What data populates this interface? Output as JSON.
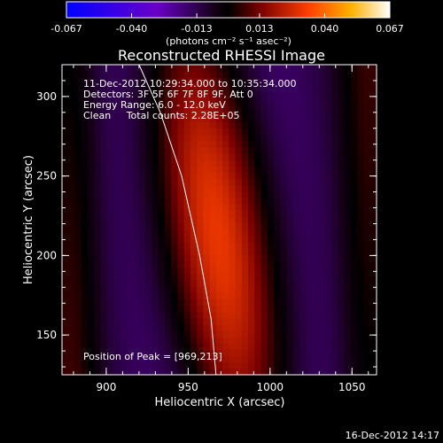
{
  "chart_data": {
    "type": "heatmap",
    "title": "Reconstructed RHESSI Image",
    "xlabel": "Heliocentric X (arcsec)",
    "ylabel": "Heliocentric Y (arcsec)",
    "xlim": [
      873,
      1065
    ],
    "ylim": [
      125,
      320
    ],
    "xticks": [
      {
        "value": 900,
        "label": "900"
      },
      {
        "value": 950,
        "label": "950"
      },
      {
        "value": 1000,
        "label": "1000"
      },
      {
        "value": 1050,
        "label": "1050"
      }
    ],
    "yticks": [
      {
        "value": 150,
        "label": "150"
      },
      {
        "value": 200,
        "label": "200"
      },
      {
        "value": 250,
        "label": "250"
      },
      {
        "value": 300,
        "label": "300"
      }
    ],
    "colorbar": {
      "min": -0.067,
      "max": 0.067,
      "tick_labels": [
        "-0.067",
        "-0.040",
        "-0.013",
        "0.013",
        "0.040",
        "0.067"
      ],
      "tick_values": [
        -0.067,
        -0.04,
        -0.013,
        0.013,
        0.04,
        0.067
      ],
      "unit_label": "(photons cm⁻² s⁻¹ asec⁻²)"
    },
    "annotations": [
      "11-Dec-2012 10:29:34.000 to 10:35:34.000",
      "Detectors: 3F 5F 6F 7F 8F 9F, Att 0",
      "Energy Range: 6.0 - 12.0 keV",
      "Clean     Total counts: 2.28E+05"
    ],
    "peak_label": "Position of Peak = [969,213]",
    "peak": {
      "x": 969,
      "y": 213,
      "value": 0.067
    },
    "image_model": {
      "grid_x": [
        873,
        1065,
        49
      ],
      "grid_y": [
        125,
        320,
        49
      ],
      "components": [
        {
          "kind": "main",
          "x0": 968,
          "y0": 212,
          "sx": 26,
          "sy": 130,
          "tilt": -0.14,
          "amp": 1.0
        },
        {
          "kind": "ring",
          "x0": 968,
          "y0": 212,
          "sx": 52,
          "sy": 600,
          "tilt": -0.14,
          "amp": -0.55
        },
        {
          "kind": "side",
          "x0": 880,
          "y0": 215,
          "sx": 12,
          "sy": 400,
          "tilt": 0.0,
          "amp": 0.18
        },
        {
          "kind": "side",
          "x0": 1058,
          "y0": 215,
          "sx": 12,
          "sy": 400,
          "tilt": 0.0,
          "amp": 0.16
        }
      ],
      "limb_curve": [
        [
          920,
          320
        ],
        [
          933,
          290
        ],
        [
          946,
          250
        ],
        [
          957,
          200
        ],
        [
          964,
          160
        ],
        [
          967,
          125
        ]
      ]
    },
    "grid": false,
    "legend": "none",
    "colormap": [
      "#0000ff",
      "#6a00c8",
      "#140014",
      "#000000",
      "#7a0000",
      "#ff4000",
      "#ffb000",
      "#ffffff"
    ]
  },
  "footer": {
    "timestamp": "16-Dec-2012 14:17"
  }
}
